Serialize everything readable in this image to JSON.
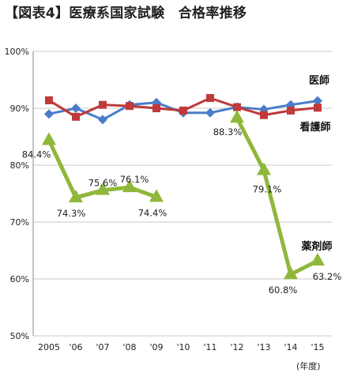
{
  "title": "【図表4】医療系国家試験　合格率推移",
  "chart_data": {
    "type": "line",
    "categories": [
      "2005",
      "'06",
      "'07",
      "'08",
      "'09",
      "'10",
      "'11",
      "'12",
      "'13",
      "'14",
      "'15"
    ],
    "x_unit_label": "(年度)",
    "ylim": [
      50,
      100
    ],
    "y_ticks": [
      "50%",
      "60%",
      "70%",
      "80%",
      "90%",
      "100%"
    ],
    "grid": true,
    "series": [
      {
        "name": "医師",
        "color": "#4a7cc9",
        "marker": "diamond",
        "values": [
          89.0,
          90.0,
          88.0,
          90.6,
          91.0,
          89.2,
          89.2,
          90.2,
          89.8,
          90.6,
          91.3
        ]
      },
      {
        "name": "看護師",
        "color": "#c0393b",
        "marker": "square",
        "values": [
          91.4,
          88.5,
          90.6,
          90.4,
          90.0,
          89.6,
          91.8,
          90.2,
          88.8,
          89.6,
          90.1
        ]
      },
      {
        "name": "薬剤師",
        "color": "#8fb83a",
        "marker": "triangle",
        "values": [
          84.4,
          74.3,
          75.6,
          76.1,
          74.4,
          null,
          null,
          88.3,
          79.1,
          60.8,
          63.2
        ],
        "labels": [
          "84.4%",
          "74.3%",
          "75.6%",
          "76.1%",
          "74.4%",
          "",
          "",
          "88.3%",
          "79.1%",
          "60.8%",
          "63.2%"
        ]
      }
    ]
  }
}
